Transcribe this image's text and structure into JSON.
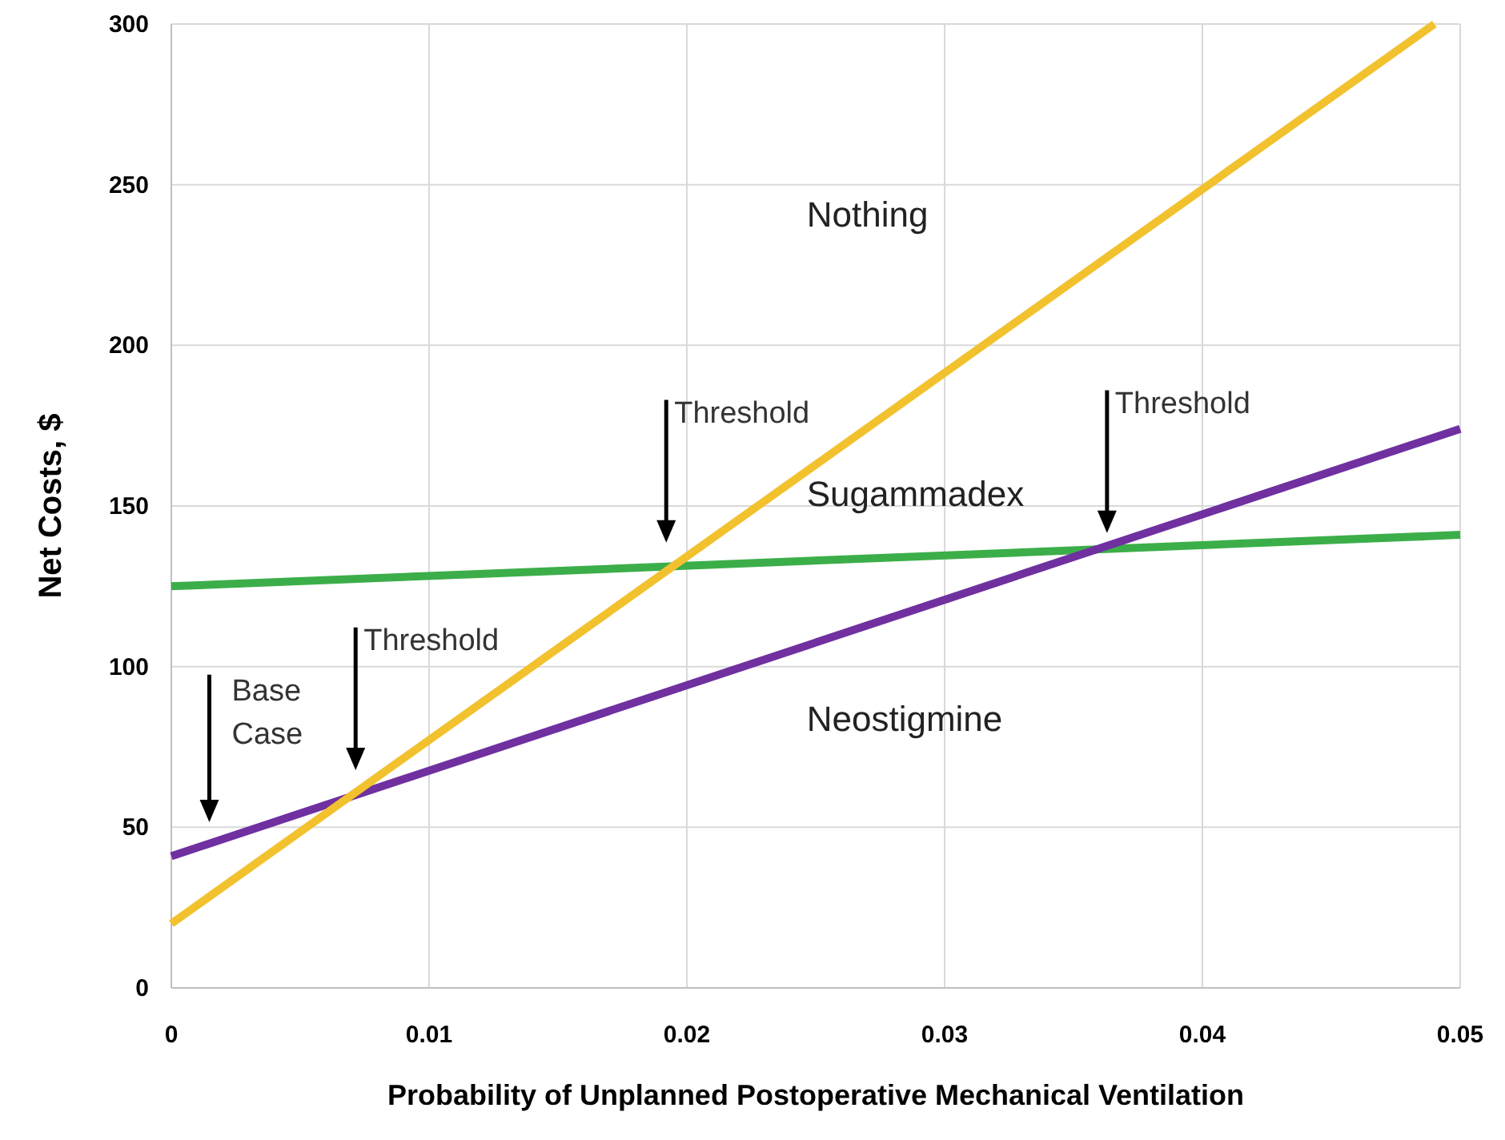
{
  "chart_data": {
    "type": "line",
    "xlabel": "Probability of Unplanned Postoperative Mechanical Ventilation",
    "ylabel": "Net Costs, $",
    "xlim": [
      0,
      0.05
    ],
    "ylim": [
      0,
      300
    ],
    "xticks": [
      0,
      0.01,
      0.02,
      0.03,
      0.04,
      0.05
    ],
    "yticks": [
      0,
      50,
      100,
      150,
      200,
      250,
      300
    ],
    "grid": true,
    "marker": "none",
    "line_style": "solid",
    "series": [
      {
        "color": "#3cae49",
        "x": [
          0,
          0.05
        ],
        "values": [
          125,
          141
        ]
      },
      {
        "color": "#7030a0",
        "x": [
          0,
          0.05
        ],
        "values": [
          41,
          174
        ]
      },
      {
        "color": "#f2c12e",
        "x": [
          0,
          0.049
        ],
        "values": [
          20,
          300
        ]
      }
    ],
    "annotations": [
      "Base Case",
      "Threshold",
      "Threshold",
      "Threshold",
      "Nothing",
      "Sugammadex",
      "Neostigmine"
    ]
  }
}
